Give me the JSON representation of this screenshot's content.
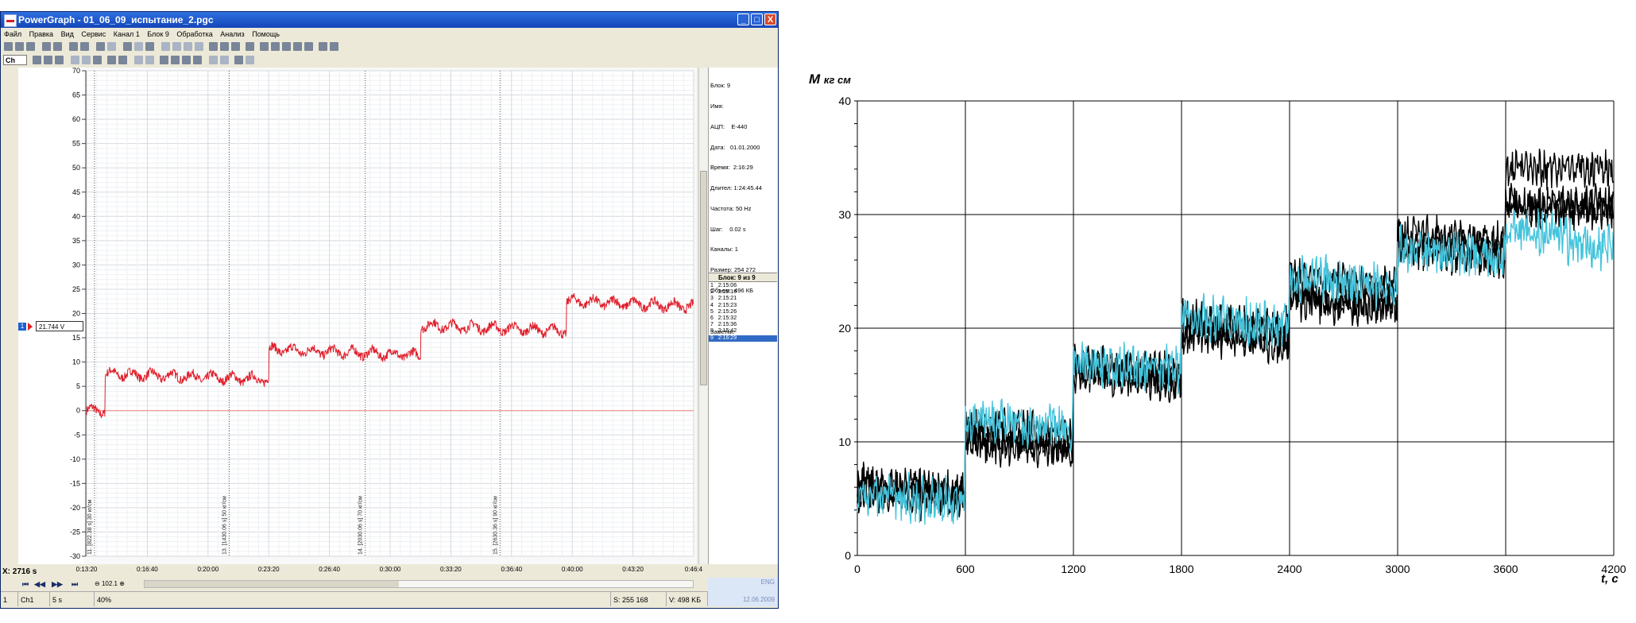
{
  "window": {
    "title": "PowerGraph - 01_06_09_испытание_2.pgc",
    "controls": [
      "_",
      "□",
      "X"
    ]
  },
  "menu": [
    "Файл",
    "Правка",
    "Вид",
    "Сервис",
    "Канал 1",
    "Блок 9",
    "Обработка",
    "Анализ",
    "Помощь"
  ],
  "toolbar2": {
    "channel_select": "Ch"
  },
  "plot": {
    "y_ticks": [
      "70",
      "65",
      "60",
      "55",
      "50",
      "45",
      "40",
      "35",
      "30",
      "25",
      "20",
      "15",
      "10",
      "5",
      "0",
      "-5",
      "-10",
      "-15",
      "-20",
      "-25",
      "-30"
    ],
    "x_ticks": [
      "0:13:20",
      "0:16:40",
      "0:20:00",
      "0:23:20",
      "0:26:40",
      "0:30:00",
      "0:33:20",
      "0:36:40",
      "0:40:00",
      "0:43:20",
      "0:46:4"
    ],
    "channel_number": "1",
    "channel_value": "21.744 V",
    "x_position": "X: 2716 s",
    "cursor_labels": [
      "11. [822.38 s] 30 кг/см",
      "13. [1430.06 s] 50 кг/см",
      "14. [2030.06 s] 70 кг/см",
      "15. [2630.36 s] 90 кг/см"
    ],
    "signal": {
      "color": "#e0202c",
      "segments": [
        {
          "t_start": 0.0,
          "t_end": 0.03,
          "level": 0
        },
        {
          "t_start": 0.03,
          "t_end": 0.3,
          "level": 7
        },
        {
          "t_start": 0.3,
          "t_end": 0.55,
          "level": 12
        },
        {
          "t_start": 0.55,
          "t_end": 0.79,
          "level": 17
        },
        {
          "t_start": 0.79,
          "t_end": 1.0,
          "level": 22
        }
      ]
    }
  },
  "side_panel": {
    "info_lines": [
      "Блок: 9",
      "Имя:",
      "АЦП:    E-440",
      "Дата:   01.01.2000",
      "Время:  2:16:29",
      "Длител: 1:24:45.44",
      "Частота: 50 Hz",
      "Шаг:    0.02 s",
      "Каналы: 1",
      "Размер: 254 272",
      "Объем:  496 КБ",
      "",
      "Заметки:"
    ],
    "block_header": "Блок: 9 из 9",
    "blocks": [
      {
        "n": "1",
        "time": "2:15:06"
      },
      {
        "n": "2",
        "time": "2:15:16"
      },
      {
        "n": "3",
        "time": "2:15:21"
      },
      {
        "n": "4",
        "time": "2:15:23"
      },
      {
        "n": "5",
        "time": "2:15:26"
      },
      {
        "n": "6",
        "time": "2:15:32"
      },
      {
        "n": "7",
        "time": "2:15:36"
      },
      {
        "n": "8",
        "time": "2:15:42"
      },
      {
        "n": "9",
        "time": "2:16:29"
      }
    ],
    "selected_block": "9"
  },
  "nav": {
    "zoom": "102.1"
  },
  "status": {
    "item1": "1",
    "item2": "Ch1",
    "item3": "5 s",
    "item4": "40%",
    "samples": "S: 255 168",
    "volume": "V: 498 KБ"
  },
  "tray": {
    "lang": "ENG",
    "date": "12.06.2009"
  },
  "chart_data": {
    "type": "line",
    "ylabel": "M",
    "ylabel_unit": "кг см",
    "xlabel": "t, c",
    "x_ticks": [
      0,
      600,
      1200,
      1800,
      2400,
      3000,
      3600,
      4200
    ],
    "y_ticks": [
      0,
      10,
      20,
      30,
      40
    ],
    "xlim": [
      0,
      4200
    ],
    "ylim": [
      0,
      40
    ],
    "grid": true,
    "series": [
      {
        "color": "#000000",
        "x": [
          0,
          600,
          1200,
          1800,
          2400,
          3000,
          3600,
          4200
        ],
        "y": [
          6.5,
          11.5,
          17,
          21,
          24.5,
          28.5,
          34,
          34
        ]
      },
      {
        "color": "#000000",
        "x": [
          0,
          600,
          1200,
          1800,
          2400,
          3000,
          3600,
          4200
        ],
        "y": [
          6,
          10.5,
          16.5,
          20,
          23,
          27.5,
          31,
          31
        ]
      },
      {
        "color": "#000000",
        "x": [
          0,
          600,
          1200,
          1800,
          2400,
          3000,
          3600,
          4200
        ],
        "y": [
          5.5,
          10,
          16,
          19.5,
          22.5,
          27,
          30.5,
          30.5
        ]
      },
      {
        "color": "#44c4dc",
        "x": [
          0,
          600,
          1200,
          1800,
          2400,
          3000,
          3600,
          4200
        ],
        "y": [
          5.5,
          12,
          17,
          21,
          24.5,
          27,
          29,
          27
        ]
      }
    ]
  }
}
